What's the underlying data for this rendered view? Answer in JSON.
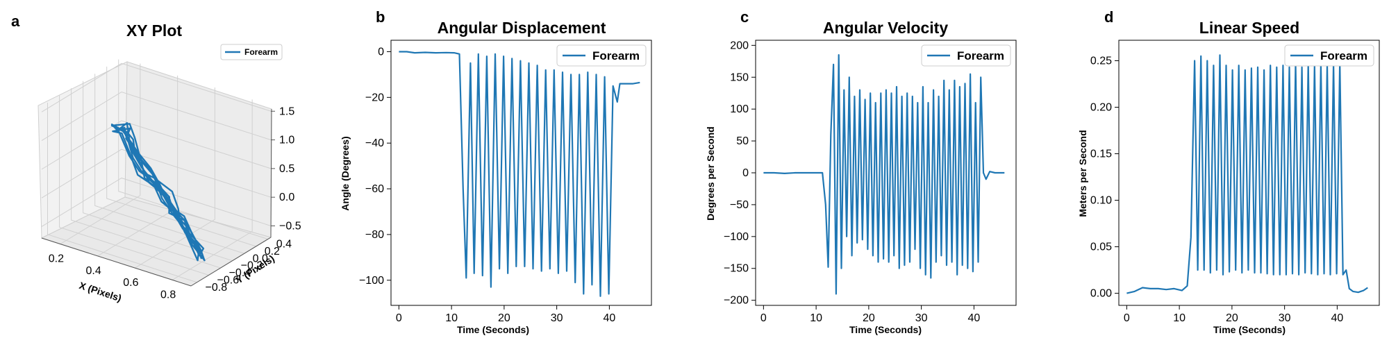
{
  "figure": {
    "accent_color": "#1f77b4",
    "panels": [
      {
        "letter": "a"
      },
      {
        "letter": "b"
      },
      {
        "letter": "c"
      },
      {
        "letter": "d"
      }
    ]
  },
  "chart_data": [
    {
      "type": "line3d",
      "title": "XY Plot",
      "xlabel": "X (Pixels)",
      "ylabel": "Y (Pixels)",
      "zlabel": "",
      "legend": [
        "Forearm"
      ],
      "legend_position": "upper-right",
      "xticks": [
        "0.2",
        "0.4",
        "0.6",
        "0.8"
      ],
      "yticks": [
        "−0.8",
        "−0.6",
        "−0.4",
        "−0.2",
        "0.0",
        "0.2",
        "0.4"
      ],
      "zticks": [
        "−0.5",
        "0.0",
        "0.5",
        "1.0",
        "1.5"
      ],
      "xlim": [
        0.1,
        0.9
      ],
      "ylim": [
        -0.9,
        0.45
      ],
      "zlim": [
        -0.7,
        1.6
      ],
      "grid": true,
      "series": [
        {
          "name": "Forearm",
          "x": [
            0.12,
            0.2,
            0.28,
            0.36,
            0.44,
            0.52,
            0.6,
            0.68,
            0.76,
            0.84,
            0.86,
            0.78,
            0.7,
            0.62,
            0.54,
            0.46,
            0.38,
            0.3,
            0.22,
            0.16
          ],
          "y": [
            0.3,
            0.2,
            0.1,
            0.0,
            -0.05,
            -0.1,
            -0.2,
            -0.3,
            -0.4,
            -0.5,
            -0.55,
            -0.45,
            -0.35,
            -0.25,
            -0.15,
            -0.05,
            0.05,
            0.15,
            0.25,
            0.35
          ],
          "z": [
            0.5,
            0.6,
            0.3,
            0.2,
            0.1,
            0.0,
            -0.1,
            -0.2,
            -0.3,
            -0.4,
            -0.45,
            -0.35,
            -0.25,
            -0.15,
            -0.05,
            0.05,
            0.15,
            0.3,
            0.45,
            0.55
          ]
        }
      ]
    },
    {
      "type": "line",
      "title": "Angular Displacement",
      "xlabel": "Time (Seconds)",
      "ylabel": "Angle (Degrees)",
      "legend": [
        "Forearm"
      ],
      "legend_position": "upper-right",
      "xlim": [
        -1.5,
        48
      ],
      "ylim": [
        -111,
        5
      ],
      "xticks": [
        0,
        10,
        20,
        30,
        40
      ],
      "yticks": [
        0,
        -20,
        -40,
        -60,
        -80,
        -100
      ],
      "grid": false,
      "series": [
        {
          "name": "Forearm",
          "x": [
            0,
            1.5,
            3,
            5,
            7,
            9,
            10.5,
            11.5,
            12.2,
            12.8,
            13.6,
            14.3,
            15.1,
            15.9,
            16.7,
            17.5,
            18.3,
            19.1,
            19.9,
            20.7,
            21.5,
            22.3,
            23.1,
            23.9,
            24.7,
            25.5,
            26.3,
            27.1,
            27.9,
            28.7,
            29.5,
            30.3,
            31.1,
            31.9,
            32.7,
            33.5,
            34.3,
            35.1,
            35.9,
            36.7,
            37.5,
            38.3,
            39.1,
            39.9,
            40.7,
            41.5,
            42.0,
            43.0,
            44.5,
            45.8
          ],
          "y": [
            0,
            0,
            -0.5,
            -0.3,
            -0.5,
            -0.4,
            -0.5,
            -1,
            -60,
            -99,
            -5,
            -97,
            -1,
            -98,
            -2,
            -103,
            -1,
            -95,
            -2,
            -97,
            -3,
            -94,
            -4,
            -94,
            -5,
            -95,
            -6,
            -96,
            -8,
            -95,
            -8,
            -97,
            -9,
            -96,
            -10,
            -101,
            -10,
            -106,
            -9,
            -102,
            -10,
            -107,
            -11,
            -106,
            -15,
            -22,
            -14,
            -14,
            -14,
            -13.5
          ]
        }
      ]
    },
    {
      "type": "line",
      "title": "Angular Velocity",
      "xlabel": "Time (Seconds)",
      "ylabel": "Degrees per Second",
      "legend": [
        "Forearm"
      ],
      "legend_position": "upper-right",
      "xlim": [
        -1.5,
        48
      ],
      "ylim": [
        -208,
        208
      ],
      "xticks": [
        0,
        10,
        20,
        30,
        40
      ],
      "yticks": [
        200,
        150,
        100,
        50,
        0,
        -50,
        -100,
        -150,
        -200
      ],
      "grid": false,
      "series": [
        {
          "name": "Forearm",
          "x": [
            0,
            2,
            4,
            6,
            8,
            10,
            11.2,
            11.8,
            12.3,
            12.8,
            13.3,
            13.8,
            14.3,
            14.8,
            15.3,
            15.8,
            16.3,
            16.8,
            17.3,
            17.8,
            18.3,
            18.8,
            19.3,
            19.8,
            20.3,
            20.8,
            21.3,
            21.8,
            22.3,
            22.8,
            23.3,
            23.8,
            24.3,
            24.8,
            25.3,
            25.8,
            26.3,
            26.8,
            27.3,
            27.8,
            28.3,
            28.8,
            29.3,
            29.8,
            30.3,
            30.8,
            31.3,
            31.8,
            32.3,
            32.8,
            33.3,
            33.8,
            34.3,
            34.8,
            35.3,
            35.8,
            36.3,
            36.8,
            37.3,
            37.8,
            38.3,
            38.8,
            39.3,
            39.8,
            40.3,
            40.8,
            41.3,
            41.8,
            42.3,
            43,
            44,
            45.8
          ],
          "y": [
            0,
            0,
            -1,
            0,
            0,
            0,
            0,
            -50,
            -148,
            60,
            170,
            -190,
            185,
            -150,
            130,
            -100,
            150,
            -130,
            120,
            -110,
            130,
            -105,
            115,
            -120,
            125,
            -130,
            110,
            -140,
            125,
            -135,
            130,
            -140,
            125,
            -130,
            135,
            -150,
            120,
            -145,
            125,
            -140,
            120,
            -120,
            110,
            -150,
            135,
            -160,
            110,
            -165,
            130,
            -140,
            120,
            -130,
            145,
            -145,
            130,
            -140,
            145,
            -160,
            135,
            -145,
            140,
            -150,
            155,
            -155,
            110,
            -140,
            150,
            0,
            -10,
            2,
            0,
            0
          ]
        }
      ]
    },
    {
      "type": "line",
      "title": "Linear Speed",
      "xlabel": "Time (Seconds)",
      "ylabel": "Meters per Second",
      "legend": [
        "Forearm"
      ],
      "legend_position": "upper-right",
      "xlim": [
        -1.5,
        48
      ],
      "ylim": [
        -0.013,
        0.272
      ],
      "xticks": [
        0,
        10,
        20,
        30,
        40
      ],
      "yticks": [
        0.25,
        0.2,
        0.15,
        0.1,
        0.05,
        0.0
      ],
      "grid": false,
      "series": [
        {
          "name": "Forearm",
          "x": [
            0,
            1.5,
            3,
            4.5,
            6,
            7.5,
            9,
            10.5,
            11.5,
            12.2,
            12.9,
            13.5,
            14.1,
            14.7,
            15.3,
            15.9,
            16.5,
            17.1,
            17.7,
            18.3,
            18.9,
            19.5,
            20.1,
            20.7,
            21.3,
            21.9,
            22.5,
            23.1,
            23.7,
            24.3,
            24.9,
            25.5,
            26.1,
            26.7,
            27.3,
            27.9,
            28.5,
            29.1,
            29.7,
            30.3,
            30.9,
            31.5,
            32.1,
            32.7,
            33.3,
            33.9,
            34.5,
            35.1,
            35.7,
            36.3,
            36.9,
            37.5,
            38.1,
            38.7,
            39.3,
            39.9,
            40.5,
            41.1,
            41.7,
            42.3,
            43.0,
            44.0,
            45.0,
            45.8
          ],
          "y": [
            0.0,
            0.002,
            0.006,
            0.005,
            0.005,
            0.004,
            0.005,
            0.003,
            0.008,
            0.06,
            0.25,
            0.025,
            0.255,
            0.025,
            0.25,
            0.022,
            0.245,
            0.025,
            0.256,
            0.02,
            0.245,
            0.023,
            0.24,
            0.025,
            0.245,
            0.022,
            0.24,
            0.025,
            0.242,
            0.022,
            0.243,
            0.022,
            0.24,
            0.021,
            0.245,
            0.02,
            0.243,
            0.02,
            0.245,
            0.02,
            0.243,
            0.021,
            0.248,
            0.02,
            0.243,
            0.022,
            0.246,
            0.021,
            0.245,
            0.02,
            0.247,
            0.021,
            0.246,
            0.02,
            0.247,
            0.021,
            0.248,
            0.02,
            0.025,
            0.005,
            0.002,
            0.001,
            0.003,
            0.006
          ]
        }
      ]
    }
  ]
}
